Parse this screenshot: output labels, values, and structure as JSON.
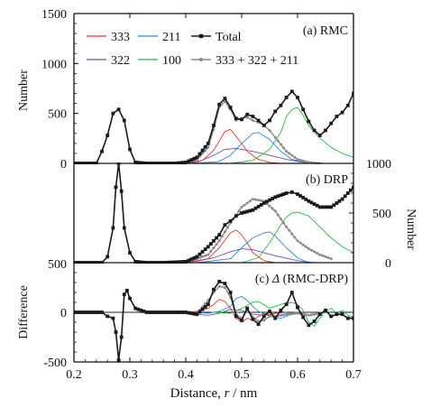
{
  "chart_data": {
    "type": "line",
    "x_axis": {
      "label": "Distance, r / nm",
      "label_parts": [
        "Distance, ",
        "r",
        " / nm"
      ],
      "range": [
        0.2,
        0.7
      ],
      "ticks": [
        0.2,
        0.3,
        0.4,
        0.5,
        0.6,
        0.7
      ],
      "tick_labels": [
        "0.2",
        "0.3",
        "0.4",
        "0.5",
        "0.6",
        "0.7"
      ]
    },
    "colors": {
      "333": "#e8342a",
      "211": "#2a86d8",
      "322": "#6a52a8",
      "100": "#2cb24a",
      "Total": "#1a1a1a",
      "sum": "#8a8a8a"
    },
    "legend": {
      "placement": "top",
      "entries": [
        {
          "key": "333",
          "label": "333"
        },
        {
          "key": "211",
          "label": "211"
        },
        {
          "key": "Total",
          "label": "Total"
        },
        {
          "key": "322",
          "label": "322"
        },
        {
          "key": "100",
          "label": "100"
        },
        {
          "key": "sum",
          "label": "333 + 322 + 211"
        }
      ]
    },
    "panels": [
      {
        "id": "a",
        "label": "(a) RMC",
        "ylabel": "Number",
        "y_side": "left",
        "ylim": [
          0,
          1500
        ],
        "yticks": [
          0,
          500,
          1000,
          1500
        ],
        "ytick_labels": [
          "0",
          "500",
          "1000",
          "1500"
        ],
        "series": [
          {
            "key": "Total",
            "x": [
              0.2,
              0.24,
              0.25,
              0.26,
              0.27,
              0.28,
              0.29,
              0.3,
              0.31,
              0.33,
              0.35,
              0.38,
              0.4,
              0.42,
              0.44,
              0.45,
              0.46,
              0.47,
              0.48,
              0.49,
              0.5,
              0.51,
              0.52,
              0.53,
              0.54,
              0.55,
              0.56,
              0.57,
              0.58,
              0.59,
              0.6,
              0.61,
              0.62,
              0.63,
              0.64,
              0.65,
              0.66,
              0.67,
              0.68,
              0.69,
              0.7
            ],
            "y": [
              0,
              0,
              120,
              280,
              500,
              540,
              430,
              140,
              10,
              0,
              0,
              0,
              10,
              60,
              200,
              380,
              590,
              650,
              560,
              450,
              440,
              490,
              470,
              430,
              380,
              430,
              520,
              580,
              660,
              720,
              660,
              540,
              420,
              330,
              280,
              330,
              400,
              470,
              510,
              580,
              700
            ]
          },
          {
            "key": "333",
            "x": [
              0.4,
              0.43,
              0.45,
              0.47,
              0.48,
              0.5,
              0.51,
              0.53,
              0.55,
              0.57
            ],
            "y": [
              0,
              30,
              130,
              320,
              340,
              200,
              120,
              40,
              10,
              0
            ]
          },
          {
            "key": "211",
            "x": [
              0.42,
              0.46,
              0.48,
              0.5,
              0.52,
              0.53,
              0.55,
              0.57,
              0.59,
              0.62
            ],
            "y": [
              0,
              20,
              80,
              200,
              300,
              310,
              240,
              120,
              40,
              0
            ]
          },
          {
            "key": "322",
            "x": [
              0.38,
              0.42,
              0.45,
              0.47,
              0.49,
              0.52,
              0.55,
              0.58,
              0.62
            ],
            "y": [
              0,
              10,
              80,
              140,
              150,
              120,
              80,
              40,
              0
            ]
          },
          {
            "key": "100",
            "x": [
              0.48,
              0.52,
              0.55,
              0.57,
              0.58,
              0.59,
              0.6,
              0.61,
              0.62,
              0.64,
              0.66,
              0.68,
              0.7
            ],
            "y": [
              0,
              30,
              140,
              310,
              470,
              540,
              560,
              480,
              380,
              250,
              160,
              100,
              60
            ]
          },
          {
            "key": "sum",
            "x": [
              0.4,
              0.42,
              0.44,
              0.45,
              0.46,
              0.47,
              0.48,
              0.49,
              0.5,
              0.51,
              0.52,
              0.53,
              0.54,
              0.55,
              0.56,
              0.58,
              0.6,
              0.62,
              0.64
            ],
            "y": [
              0,
              40,
              160,
              340,
              560,
              620,
              540,
              430,
              450,
              460,
              430,
              410,
              380,
              330,
              260,
              120,
              40,
              10,
              0
            ]
          }
        ]
      },
      {
        "id": "b",
        "label": "(b) DRP",
        "ylabel": "Number",
        "y_side": "right",
        "ylim": [
          0,
          1000
        ],
        "yticks": [
          0,
          500,
          1000
        ],
        "ytick_labels": [
          "0",
          "500",
          "1000"
        ],
        "left_labels": [
          "500"
        ],
        "series": [
          {
            "key": "Total",
            "x": [
              0.2,
              0.25,
              0.26,
              0.27,
              0.275,
              0.28,
              0.285,
              0.29,
              0.3,
              0.31,
              0.33,
              0.36,
              0.4,
              0.42,
              0.44,
              0.46,
              0.47,
              0.48,
              0.49,
              0.5,
              0.52,
              0.54,
              0.56,
              0.58,
              0.59,
              0.6,
              0.62,
              0.64,
              0.66,
              0.68,
              0.7
            ],
            "y": [
              0,
              0,
              60,
              350,
              760,
              1000,
              720,
              350,
              100,
              10,
              0,
              0,
              10,
              60,
              160,
              280,
              380,
              420,
              470,
              500,
              530,
              600,
              660,
              700,
              710,
              690,
              620,
              560,
              560,
              640,
              760
            ]
          },
          {
            "key": "333",
            "x": [
              0.4,
              0.44,
              0.46,
              0.48,
              0.49,
              0.5,
              0.51,
              0.52,
              0.54,
              0.56
            ],
            "y": [
              0,
              40,
              150,
              300,
              330,
              280,
              200,
              100,
              20,
              0
            ]
          },
          {
            "key": "211",
            "x": [
              0.42,
              0.48,
              0.5,
              0.52,
              0.54,
              0.55,
              0.56,
              0.58,
              0.6,
              0.62
            ],
            "y": [
              0,
              40,
              150,
              250,
              300,
              310,
              270,
              150,
              50,
              0
            ]
          },
          {
            "key": "322",
            "x": [
              0.38,
              0.42,
              0.45,
              0.48,
              0.5,
              0.52,
              0.56,
              0.6,
              0.63
            ],
            "y": [
              0,
              15,
              50,
              110,
              140,
              130,
              70,
              20,
              0
            ]
          },
          {
            "key": "100",
            "x": [
              0.5,
              0.53,
              0.55,
              0.57,
              0.58,
              0.59,
              0.6,
              0.62,
              0.64,
              0.66,
              0.68,
              0.7
            ],
            "y": [
              0,
              50,
              200,
              380,
              460,
              500,
              510,
              470,
              360,
              250,
              160,
              100
            ]
          },
          {
            "key": "sum",
            "x": [
              0.4,
              0.44,
              0.46,
              0.48,
              0.5,
              0.52,
              0.54,
              0.56,
              0.58,
              0.6,
              0.62,
              0.64,
              0.66
            ],
            "y": [
              0,
              80,
              220,
              400,
              560,
              640,
              620,
              520,
              360,
              220,
              140,
              80,
              40
            ]
          }
        ]
      },
      {
        "id": "c",
        "label": "(c) Δ (RMC-DRP)",
        "label_parts": [
          "(c) ",
          "Δ",
          " (RMC-DRP)"
        ],
        "ylabel": "Difference",
        "y_side": "left",
        "ylim": [
          -500,
          500
        ],
        "yticks": [
          -500,
          0
        ],
        "ytick_labels": [
          "-500",
          "0"
        ],
        "series": [
          {
            "key": "Total",
            "x": [
              0.2,
              0.25,
              0.26,
              0.27,
              0.275,
              0.28,
              0.285,
              0.29,
              0.295,
              0.3,
              0.31,
              0.33,
              0.4,
              0.42,
              0.44,
              0.45,
              0.46,
              0.47,
              0.48,
              0.49,
              0.5,
              0.51,
              0.52,
              0.53,
              0.54,
              0.55,
              0.56,
              0.57,
              0.58,
              0.59,
              0.6,
              0.61,
              0.62,
              0.63,
              0.64,
              0.65,
              0.66,
              0.67,
              0.68,
              0.69,
              0.7
            ],
            "y": [
              0,
              0,
              -40,
              -60,
              -200,
              -480,
              -250,
              180,
              220,
              140,
              40,
              0,
              0,
              -20,
              80,
              230,
              310,
              290,
              200,
              -40,
              -80,
              40,
              -70,
              -120,
              -40,
              10,
              -60,
              20,
              80,
              200,
              50,
              -50,
              -130,
              -90,
              -20,
              20,
              -40,
              -20,
              -20,
              -60,
              -60
            ]
          },
          {
            "key": "333",
            "x": [
              0.4,
              0.42,
              0.44,
              0.45,
              0.46,
              0.47,
              0.48,
              0.49,
              0.5,
              0.51,
              0.52,
              0.53,
              0.54,
              0.55,
              0.56,
              0.57
            ],
            "y": [
              0,
              10,
              40,
              80,
              130,
              110,
              40,
              -60,
              -100,
              -60,
              -80,
              -40,
              -10,
              -30,
              -10,
              0
            ]
          },
          {
            "key": "211",
            "x": [
              0.42,
              0.44,
              0.46,
              0.48,
              0.49,
              0.5,
              0.51,
              0.52,
              0.53,
              0.55,
              0.57,
              0.59,
              0.6
            ],
            "y": [
              0,
              -10,
              10,
              60,
              140,
              160,
              120,
              60,
              10,
              -40,
              -60,
              -20,
              0
            ]
          },
          {
            "key": "322",
            "x": [
              0.4,
              0.42,
              0.44,
              0.46,
              0.48,
              0.5,
              0.52,
              0.54,
              0.56,
              0.58
            ],
            "y": [
              0,
              -20,
              -30,
              -10,
              30,
              20,
              -20,
              -30,
              -10,
              0
            ]
          },
          {
            "key": "100",
            "x": [
              0.45,
              0.48,
              0.5,
              0.52,
              0.53,
              0.55,
              0.57,
              0.59,
              0.6,
              0.61,
              0.62,
              0.63,
              0.64,
              0.65,
              0.66,
              0.67,
              0.68,
              0.69,
              0.7
            ],
            "y": [
              0,
              -10,
              40,
              100,
              110,
              40,
              80,
              100,
              80,
              20,
              -100,
              -140,
              -60,
              10,
              40,
              -10,
              20,
              -30,
              -50
            ]
          },
          {
            "key": "sum",
            "x": [
              0.4,
              0.42,
              0.44,
              0.45,
              0.46,
              0.47,
              0.48,
              0.49,
              0.5,
              0.51,
              0.52,
              0.53,
              0.54,
              0.55,
              0.56,
              0.58,
              0.6,
              0.62,
              0.64
            ],
            "y": [
              0,
              -10,
              120,
              200,
              260,
              250,
              150,
              -20,
              -60,
              30,
              -50,
              -90,
              -80,
              -40,
              -40,
              -20,
              -10,
              -30,
              -10
            ]
          }
        ]
      }
    ]
  }
}
